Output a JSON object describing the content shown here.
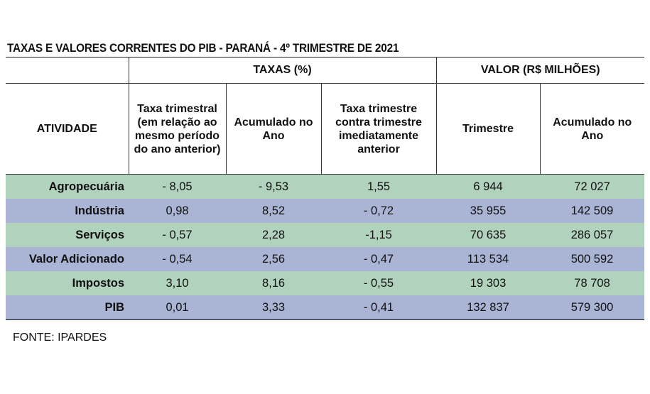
{
  "title": "TAXAS E VALORES CORRENTES DO PIB - PARANÁ - 4º TRIMESTRE DE 2021",
  "table": {
    "group_headers": {
      "taxas": "TAXAS (%)",
      "valor": "VALOR (R$ MILHÕES)"
    },
    "columns": [
      "ATIVIDADE",
      "Taxa trimestral (em relação ao mesmo período do ano anterior)",
      "Acumulado no Ano",
      "Taxa trimestre contra trimestre imediatamente anterior",
      "Trimestre",
      "Acumulado no Ano"
    ],
    "rows": [
      {
        "atividade": "Agropecuária",
        "taxa_trimestral": "- 8,05",
        "acumulado_ano": "- 9,53",
        "taxa_tri_anterior": "1,55",
        "valor_trimestre": "6 944",
        "valor_acumulado": "72 027",
        "color": "green"
      },
      {
        "atividade": "Indústria",
        "taxa_trimestral": "0,98",
        "acumulado_ano": "8,52",
        "taxa_tri_anterior": "- 0,72",
        "valor_trimestre": "35 955",
        "valor_acumulado": "142 509",
        "color": "blue"
      },
      {
        "atividade": "Serviços",
        "taxa_trimestral": "- 0,57",
        "acumulado_ano": "2,28",
        "taxa_tri_anterior": "-1,15",
        "valor_trimestre": "70 635",
        "valor_acumulado": "286 057",
        "color": "green"
      },
      {
        "atividade": "Valor Adicionado",
        "taxa_trimestral": "- 0,54",
        "acumulado_ano": "2,56",
        "taxa_tri_anterior": "- 0,47",
        "valor_trimestre": "113 534",
        "valor_acumulado": "500 592",
        "color": "blue"
      },
      {
        "atividade": "Impostos",
        "taxa_trimestral": "3,10",
        "acumulado_ano": "8,16",
        "taxa_tri_anterior": "- 0,55",
        "valor_trimestre": "19 303",
        "valor_acumulado": "78 708",
        "color": "green"
      },
      {
        "atividade": "PIB",
        "taxa_trimestral": "0,01",
        "acumulado_ano": "3,33",
        "taxa_tri_anterior": "- 0,41",
        "valor_trimestre": "132 837",
        "valor_acumulado": "579 300",
        "color": "blue"
      }
    ]
  },
  "source": "FONTE: IPARDES",
  "colors": {
    "row_green": "#b1d2bd",
    "row_blue": "#aab5d5"
  }
}
